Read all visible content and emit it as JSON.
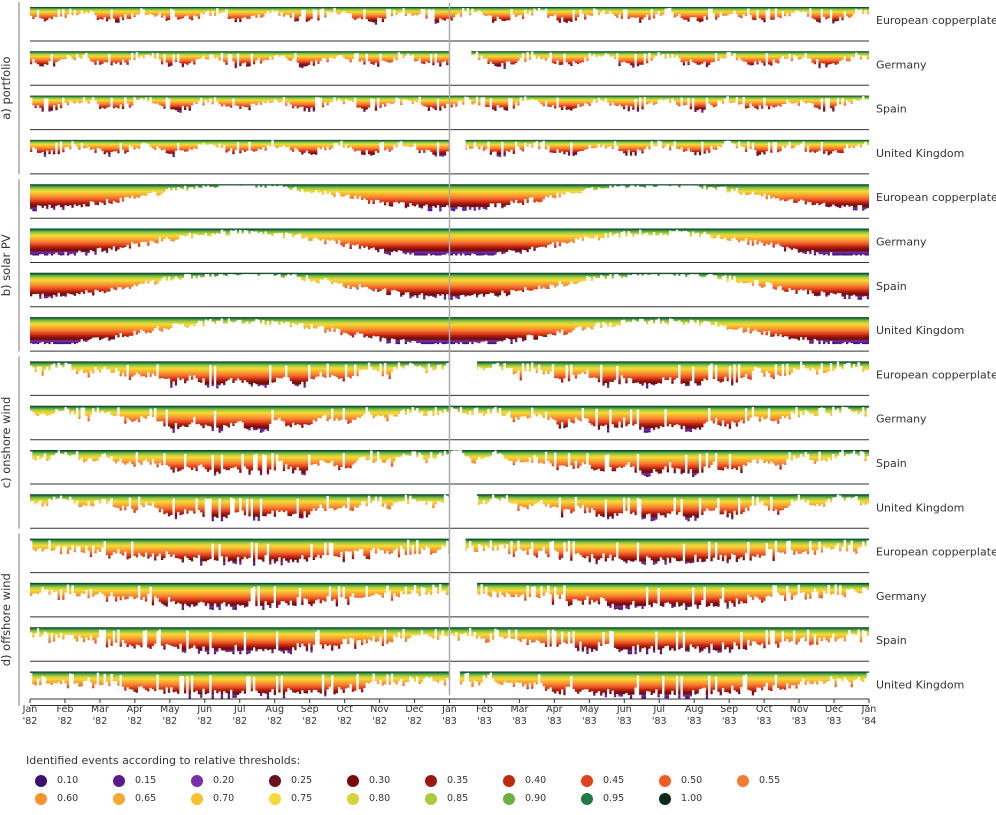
{
  "chart_data": {
    "type": "heatmap",
    "description_text": "",
    "groups": [
      {
        "label": "a) portfolio",
        "series": [
          "European copperplate",
          "Germany",
          "Spain",
          "United Kingdom"
        ]
      },
      {
        "label": "b) solar PV",
        "series": [
          "European copperplate",
          "Germany",
          "Spain",
          "United Kingdom"
        ]
      },
      {
        "label": "c) onshore wind",
        "series": [
          "European copperplate",
          "Germany",
          "Spain",
          "United Kingdom"
        ]
      },
      {
        "label": "d) offshore wind",
        "series": [
          "European copperplate",
          "Germany",
          "Spain",
          "United Kingdom"
        ]
      }
    ],
    "x_ticks": [
      {
        "month": "Jan",
        "year": "'82"
      },
      {
        "month": "Feb",
        "year": "'82"
      },
      {
        "month": "Mar",
        "year": "'82"
      },
      {
        "month": "Apr",
        "year": "'82"
      },
      {
        "month": "May",
        "year": "'82"
      },
      {
        "month": "Jun",
        "year": "'82"
      },
      {
        "month": "Jul",
        "year": "'82"
      },
      {
        "month": "Aug",
        "year": "'82"
      },
      {
        "month": "Sep",
        "year": "'82"
      },
      {
        "month": "Oct",
        "year": "'82"
      },
      {
        "month": "Nov",
        "year": "'82"
      },
      {
        "month": "Dec",
        "year": "'82"
      },
      {
        "month": "Jan",
        "year": "'83"
      },
      {
        "month": "Feb",
        "year": "'83"
      },
      {
        "month": "Mar",
        "year": "'83"
      },
      {
        "month": "Apr",
        "year": "'83"
      },
      {
        "month": "May",
        "year": "'83"
      },
      {
        "month": "Jun",
        "year": "'83"
      },
      {
        "month": "Jul",
        "year": "'83"
      },
      {
        "month": "Aug",
        "year": "'83"
      },
      {
        "month": "Sep",
        "year": "'83"
      },
      {
        "month": "Oct",
        "year": "'83"
      },
      {
        "month": "Nov",
        "year": "'83"
      },
      {
        "month": "Dec",
        "year": "'83"
      },
      {
        "month": "Jan",
        "year": "'84"
      }
    ],
    "x_range": [
      "1982-01-01",
      "1984-01-01"
    ],
    "legend": {
      "title": "Identified events according to relative thresholds:",
      "thresholds": [
        {
          "label": "0.10",
          "color": "#3b0f70"
        },
        {
          "label": "0.15",
          "color": "#5a1a8c"
        },
        {
          "label": "0.20",
          "color": "#7b2fa6"
        },
        {
          "label": "0.25",
          "color": "#6d1020"
        },
        {
          "label": "0.30",
          "color": "#7d0a0a"
        },
        {
          "label": "0.35",
          "color": "#9a1a12"
        },
        {
          "label": "0.40",
          "color": "#c0280f"
        },
        {
          "label": "0.45",
          "color": "#e0421b"
        },
        {
          "label": "0.50",
          "color": "#f05a28"
        },
        {
          "label": "0.55",
          "color": "#f57a30"
        },
        {
          "label": "0.60",
          "color": "#f7932f"
        },
        {
          "label": "0.65",
          "color": "#f8a934"
        },
        {
          "label": "0.70",
          "color": "#f9c02c"
        },
        {
          "label": "0.75",
          "color": "#f7d937"
        },
        {
          "label": "0.80",
          "color": "#d6d43a"
        },
        {
          "label": "0.85",
          "color": "#a8cc3d"
        },
        {
          "label": "0.90",
          "color": "#6faf3e"
        },
        {
          "label": "0.95",
          "color": "#1f7a45"
        },
        {
          "label": "1.00",
          "color": "#0b2a17"
        }
      ]
    },
    "colors": {
      "ramp_top_to_bottom": [
        "#0b2a17",
        "#1f7a45",
        "#6faf3e",
        "#a8cc3d",
        "#d6d43a",
        "#f7d937",
        "#f9c02c",
        "#f8a934",
        "#f7932f",
        "#f57a30",
        "#f05a28",
        "#e0421b",
        "#c0280f",
        "#9a1a12",
        "#7d0a0a",
        "#6d1020",
        "#7b2fa6",
        "#5a1a8c",
        "#3b0f70"
      ],
      "axis": "#333333",
      "year_divider": "#aaaaaa",
      "group_bracket": "#bbbbbb"
    },
    "gaps": [
      {
        "series": "Germany",
        "group": "a) portfolio",
        "range": [
          "1983-01-01",
          "1983-01-20"
        ]
      },
      {
        "series": "United Kingdom",
        "group": "a) portfolio",
        "range": [
          "1983-01-01",
          "1983-01-15"
        ]
      },
      {
        "series": "European copperplate",
        "group": "c) onshore wind",
        "range": [
          "1983-01-01",
          "1983-01-25"
        ]
      },
      {
        "series": "United Kingdom",
        "group": "c) onshore wind",
        "range": [
          "1983-01-01",
          "1983-01-25"
        ]
      },
      {
        "series": "European copperplate",
        "group": "d) offshore wind",
        "range": [
          "1983-01-01",
          "1983-01-15"
        ]
      },
      {
        "series": "Germany",
        "group": "d) offshore wind",
        "range": [
          "1983-01-01",
          "1983-01-25"
        ]
      },
      {
        "series": "United Kingdom",
        "group": "d) offshore wind",
        "range": [
          "1983-01-01",
          "1983-01-10"
        ]
      }
    ]
  }
}
